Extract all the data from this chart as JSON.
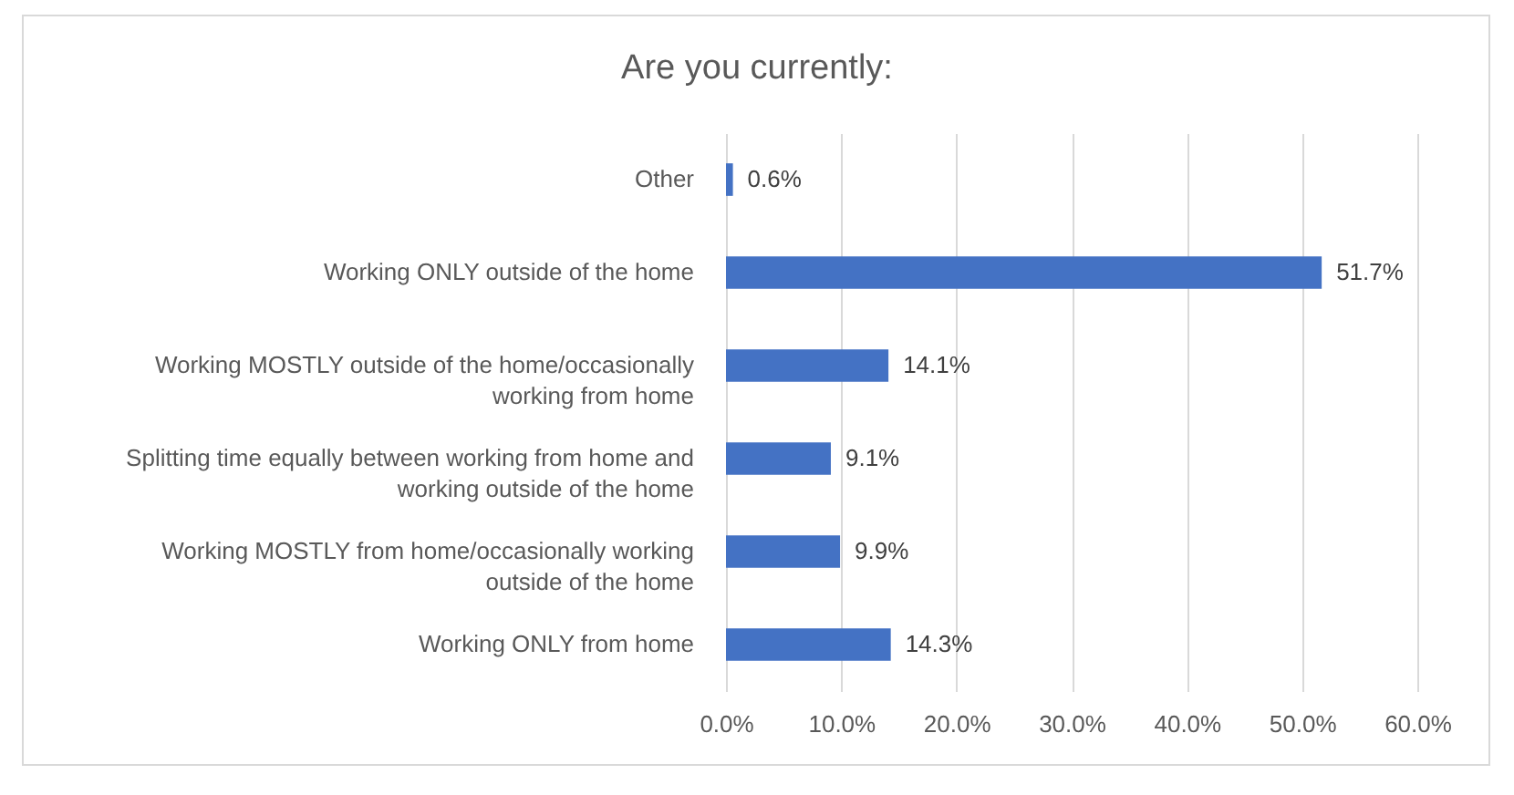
{
  "chart_data": {
    "type": "bar",
    "orientation": "horizontal",
    "title": "Are you currently:",
    "categories": [
      "Other",
      "Working ONLY outside of the home",
      "Working MOSTLY outside of the home/occasionally working from home",
      "Splitting time equally between working from home and working outside of the home",
      "Working MOSTLY from home/occasionally working outside of the home",
      "Working ONLY from home"
    ],
    "values": [
      0.6,
      51.7,
      14.1,
      9.1,
      9.9,
      14.3
    ],
    "value_labels": [
      "0.6%",
      "51.7%",
      "14.1%",
      "9.1%",
      "9.9%",
      "14.3%"
    ],
    "color": "#4472c4",
    "xlim": [
      0,
      60
    ],
    "xticks": [
      {
        "value": 0,
        "label": "0.0%"
      },
      {
        "value": 10,
        "label": "10.0%"
      },
      {
        "value": 20,
        "label": "20.0%"
      },
      {
        "value": 30,
        "label": "30.0%"
      },
      {
        "value": 40,
        "label": "40.0%"
      },
      {
        "value": 50,
        "label": "50.0%"
      },
      {
        "value": 60,
        "label": "60.0%"
      }
    ],
    "grid": "x"
  }
}
